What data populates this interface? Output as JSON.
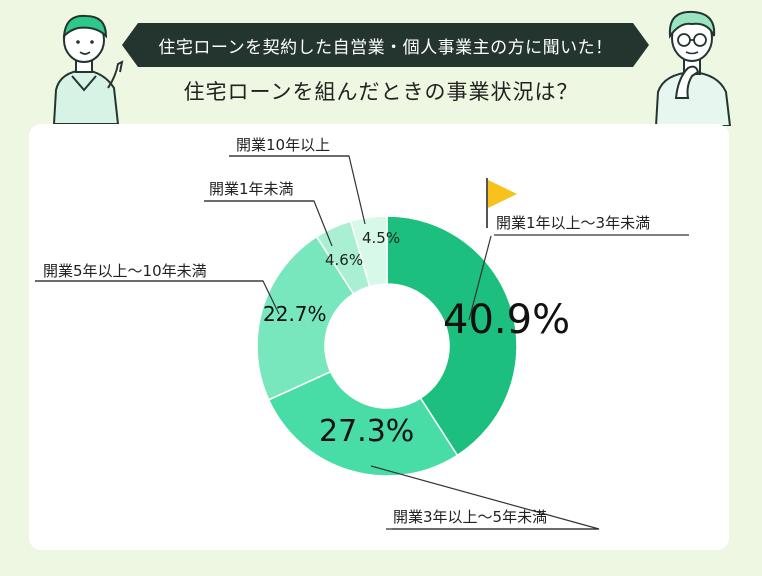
{
  "header": {
    "banner": "住宅ローンを契約した自営業・個人事業主の方に聞いた！",
    "title": "住宅ローンを組んだときの事業状況は？"
  },
  "colors": {
    "background": "#eef7e1",
    "banner": "#243530",
    "flag": "#f7c21c",
    "slices": [
      "#1cbf7e",
      "#48dca7",
      "#79e7be",
      "#a9f0d3",
      "#d7f9ea"
    ]
  },
  "icons": [
    "left-person-icon",
    "right-person-icon",
    "flag-icon"
  ],
  "chart_data": {
    "type": "pie",
    "donut": true,
    "categories": [
      "開業1年以上〜3年未満",
      "開業3年以上〜5年未満",
      "開業5年以上〜10年未満",
      "開業1年未満",
      "開業10年以上"
    ],
    "values": [
      40.9,
      27.3,
      22.7,
      4.6,
      4.5
    ],
    "value_labels": [
      "40.9%",
      "27.3%",
      "22.7%",
      "4.6%",
      "4.5%"
    ],
    "unit": "%"
  }
}
